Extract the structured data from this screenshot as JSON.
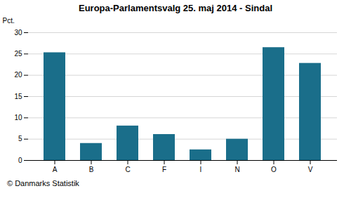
{
  "chart_data": {
    "type": "bar",
    "title": "Europa-Parlamentsvalg 25. maj 2014 - Sindal",
    "categories": [
      "A",
      "B",
      "C",
      "F",
      "I",
      "N",
      "O",
      "V"
    ],
    "values": [
      25.3,
      4.0,
      8.1,
      6.1,
      2.5,
      5.0,
      26.5,
      22.8
    ],
    "color": "#1a6e8a",
    "ylabel": "Pct.",
    "ylim": [
      0,
      30
    ],
    "yticks": [
      0,
      5,
      10,
      15,
      20,
      25,
      30
    ],
    "grid": true,
    "caption": "© Danmarks Statistik"
  }
}
